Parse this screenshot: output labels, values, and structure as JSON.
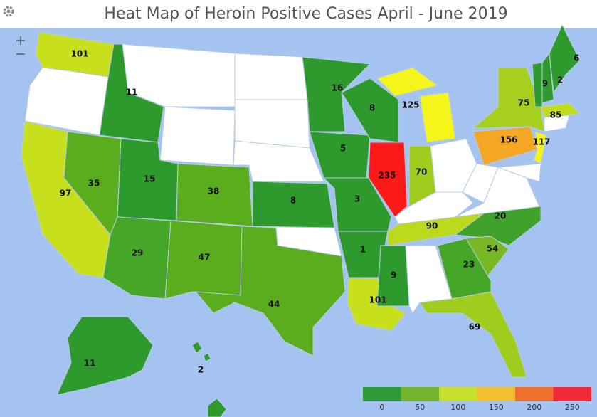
{
  "chart_data": {
    "type": "choropleth",
    "title": "Heat Map of Heroin Positive Cases April - June 2019",
    "values": [
      101,
      11,
      97,
      35,
      15,
      29,
      38,
      47,
      44,
      8,
      16,
      5,
      3,
      1,
      101,
      9,
      8,
      235,
      125,
      70,
      156,
      75,
      9,
      2,
      6,
      85,
      117,
      90,
      20,
      54,
      23,
      69,
      11,
      2
    ],
    "colors": [
      "#c8df1c",
      "#2e9a2e",
      "#c8df1c",
      "#5aae1e",
      "#2e9a2e",
      "#45a627",
      "#5aae1e",
      "#5aae1e",
      "#5aae1e",
      "#2e9a2e",
      "#2e9a2e",
      "#2e9a2e",
      "#2e9a2e",
      "#2e9a2e",
      "#c8df1c",
      "#2e9a2e",
      "#2e9a2e",
      "#ff1a1a",
      "#f5f51a",
      "#a0cc1e",
      "#f5a623",
      "#a6cf1e",
      "#2e9a2e",
      "#2e9a2e",
      "#2e9a2e",
      "#c2dc1c",
      "#f5f51a",
      "#bcd91c",
      "#3fa22a",
      "#78b825",
      "#45a627",
      "#a0cc1e",
      "#2e9a2e",
      "#2e9a2e"
    ],
    "legend": {
      "ticks": [
        0,
        50,
        100,
        150,
        200,
        250
      ],
      "colors": [
        "#2e9a3a",
        "#74b42e",
        "#c7df2e",
        "#f0c030",
        "#f07030",
        "#f02a3a"
      ]
    }
  }
}
